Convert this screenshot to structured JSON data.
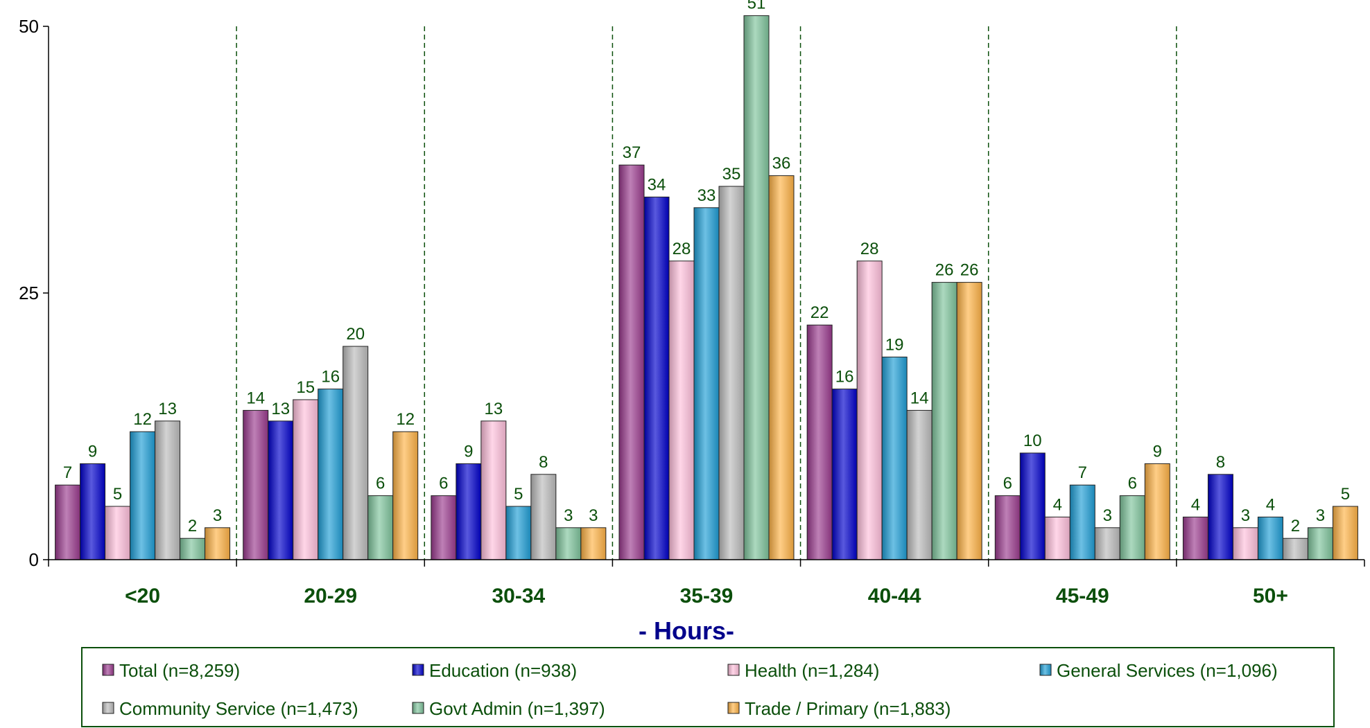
{
  "chart_data": {
    "type": "bar",
    "title": "",
    "xlabel": "- Hours-",
    "ylabel": "",
    "ylim": [
      0,
      50
    ],
    "yticks": [
      "0",
      "25",
      "50"
    ],
    "grid": false,
    "legend_position": "bottom",
    "categories": [
      "<20",
      "20-29",
      "30-34",
      "35-39",
      "40-44",
      "45-49",
      "50+"
    ],
    "series": [
      {
        "name": "Total (n=8,259)",
        "color": "#9b3b8e",
        "values": [
          7,
          14,
          6,
          37,
          22,
          6,
          4
        ]
      },
      {
        "name": "Education (n=938)",
        "color": "#0000cc",
        "values": [
          9,
          13,
          9,
          34,
          16,
          10,
          8
        ]
      },
      {
        "name": "Health (n=1,284)",
        "color": "#ffc0dc",
        "values": [
          5,
          15,
          13,
          28,
          28,
          4,
          3
        ]
      },
      {
        "name": "General Services (n=1,096)",
        "color": "#1e9ed6",
        "values": [
          12,
          16,
          5,
          33,
          19,
          7,
          4
        ]
      },
      {
        "name": "Community Service (n=1,473)",
        "color": "#bcbcbc",
        "values": [
          13,
          20,
          8,
          35,
          14,
          3,
          2
        ]
      },
      {
        "name": "Govt Admin (n=1,397)",
        "color": "#7fc49c",
        "values": [
          2,
          6,
          3,
          51,
          26,
          6,
          3
        ]
      },
      {
        "name": "Trade / Primary (n=1,883)",
        "color": "#ffb347",
        "values": [
          3,
          12,
          3,
          36,
          26,
          9,
          5
        ]
      }
    ]
  }
}
